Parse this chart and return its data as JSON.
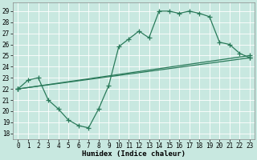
{
  "xlabel": "Humidex (Indice chaleur)",
  "line_color": "#2a7a5a",
  "bg_color": "#c8e8e0",
  "grid_color": "#b0d0c8",
  "xlim": [
    -0.5,
    23.5
  ],
  "ylim": [
    17.5,
    29.8
  ],
  "ytick_vals": [
    18,
    19,
    20,
    21,
    22,
    23,
    24,
    25,
    26,
    27,
    28,
    29
  ],
  "xtick_vals": [
    0,
    1,
    2,
    3,
    4,
    5,
    6,
    7,
    8,
    9,
    10,
    11,
    12,
    13,
    14,
    15,
    16,
    17,
    18,
    19,
    20,
    21,
    22,
    23
  ],
  "line1_x": [
    0,
    1,
    2,
    3,
    4,
    5,
    6,
    7,
    8,
    9,
    10,
    11,
    12,
    13,
    14,
    15,
    16,
    17,
    18,
    19,
    20,
    21,
    22,
    23
  ],
  "line1_y": [
    22.0,
    22.8,
    23.0,
    21.0,
    20.2,
    19.2,
    18.7,
    18.5,
    20.2,
    22.3,
    25.8,
    26.5,
    27.2,
    26.6,
    29.0,
    29.0,
    28.8,
    29.0,
    28.8,
    28.5,
    26.2,
    26.0,
    25.2,
    24.8
  ],
  "line2_x": [
    0,
    23
  ],
  "line2_y": [
    22.0,
    25.0
  ],
  "line3_x": [
    0,
    23
  ],
  "line3_y": [
    22.0,
    24.8
  ],
  "line2_has_markers_at": [
    0,
    23
  ],
  "line3_has_markers_at": [
    0,
    23
  ],
  "markersize": 4,
  "linewidth": 0.9,
  "tick_fontsize": 5.5
}
